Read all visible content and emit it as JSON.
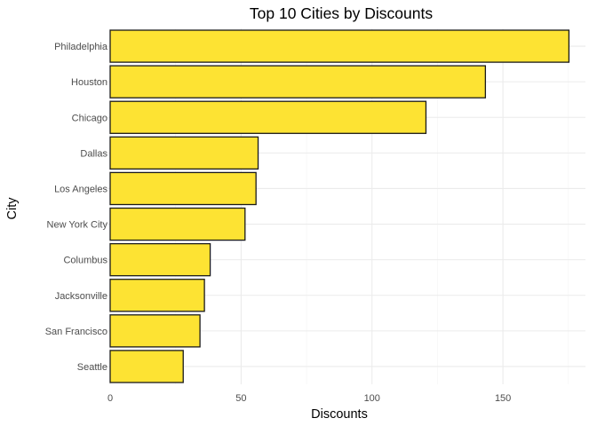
{
  "chart_data": {
    "type": "bar",
    "orientation": "horizontal",
    "title": "Top 10 Cities by Discounts",
    "xlabel": "Discounts",
    "ylabel": "City",
    "categories": [
      "Philadelphia",
      "Houston",
      "Chicago",
      "Dallas",
      "Los Angeles",
      "New York City",
      "Columbus",
      "Jacksonville",
      "San Francisco",
      "Seattle"
    ],
    "values": [
      175.2,
      143.3,
      120.6,
      56.5,
      55.7,
      51.5,
      38.2,
      36.0,
      34.3,
      27.9
    ],
    "xlim": [
      0,
      180
    ],
    "xticks": [
      0,
      50,
      100,
      150
    ],
    "grid": true,
    "legend": "none",
    "colors": {
      "bar_fill": "#FDE333",
      "bar_outline": "#1A1A1A"
    }
  }
}
